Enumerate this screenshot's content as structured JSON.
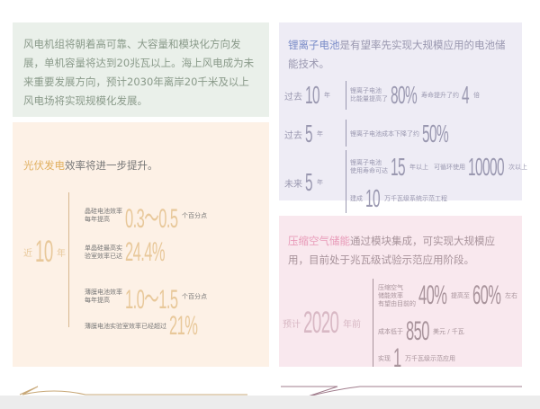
{
  "wind": {
    "text": "风电机组将朝着高可靠、大容量和模块化方向发展，单机容量将达到20兆瓦以上。海上风电成为未来重要发展方向，预计2030年离岸20千米及以上风电场将实现规模化发展。"
  },
  "pv": {
    "highlight": "光伏发电",
    "lead": "效率将进一步提升。",
    "period_pre": "近",
    "period_num": "10",
    "period_post": "年",
    "items": [
      {
        "label": "晶硅电池效率\n每年提高",
        "value": "0.3～0.5",
        "unit": "个百分点"
      },
      {
        "label": "单晶硅最高实\n验室效率已达",
        "value": "24.4%",
        "unit": ""
      },
      {
        "label": "薄膜电池效率\n每年提高",
        "value": "1.0～1.5",
        "unit": "个百分点"
      },
      {
        "label": "薄膜电池实验室效率已经超过",
        "value": "21%",
        "unit": ""
      }
    ]
  },
  "li": {
    "highlight": "锂离子电池",
    "lead": "是有望率先实现大规模应用的电池储能技术。",
    "rows": [
      {
        "pre": "过去",
        "num": "10",
        "post": "年",
        "label": "锂离子电池\n比能量提高了",
        "value": "80%",
        "label2": "寿命提升了约",
        "value2": "4",
        "unit2": "倍"
      },
      {
        "pre": "过去",
        "num": "5",
        "post": "年",
        "label": "锂离子电池成本下降了约",
        "value": "50%"
      },
      {
        "pre": "未来",
        "num": "5",
        "post": "年",
        "label": "锂离子电池\n使用寿命可达",
        "value": "15",
        "unit": "年以上",
        "label2": "可循环使用",
        "value2": "10000",
        "unit2": "次以上",
        "label3": "建成",
        "value3": "10",
        "unit3": "万千瓦级系统示范工程"
      }
    ]
  },
  "air": {
    "highlight": "压缩空气储能",
    "lead": "通过模块集成，可实现大规模应用，目前处于兆瓦级试验示范应用阶段。",
    "period_pre": "预计",
    "period_num": "2020",
    "period_post": "年前",
    "r1": {
      "label": "压缩空气\n储能效率\n有望由目前的",
      "value": "40%",
      "mid": "提高至",
      "value2": "60%",
      "post": "左右"
    },
    "r2": {
      "label": "成本低于",
      "value": "850",
      "unit": "美元 / 千瓦"
    },
    "r3": {
      "label": "实现",
      "value": "1",
      "unit": "万千瓦级示范应用"
    }
  },
  "colors": {
    "pv_accent": "#e0b060",
    "li_accent": "#7a8cc8",
    "air_accent": "#e89ab8"
  }
}
